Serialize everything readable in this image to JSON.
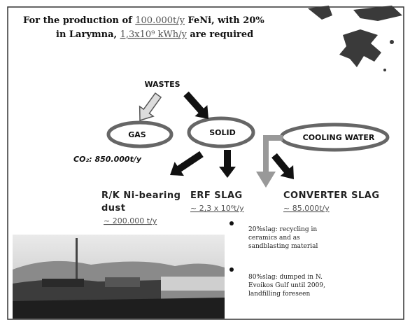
{
  "header": {
    "line1": [
      "For the production of ",
      "100.000t/y",
      " FeNi, with 20%"
    ],
    "line2": [
      "in Larymna, ",
      "1,3x10⁹ kWh/y",
      " are required"
    ]
  },
  "nodes": [
    {
      "label": "WASTES"
    },
    {
      "label": "GAS"
    },
    {
      "label": "SOLID"
    },
    {
      "label": "COOLING WATER"
    }
  ],
  "gas_note": "CO₂: 850.000t/y",
  "outputs": [
    {
      "label": [
        "R/K Ni-bearing",
        "dust"
      ],
      "amount": "~ 200.000 t/y"
    },
    {
      "label": [
        "ERF SLAG"
      ],
      "amount": "~ 2,3 x 10⁶t/y"
    },
    {
      "label": [
        "CONVERTER SLAG"
      ],
      "amount": "~ 85.000t/y"
    }
  ],
  "bullets": [
    [
      "20%slag: recycling in",
      "ceramics and as",
      "sandblasting material"
    ],
    [
      "80%slag: dumped in N.",
      "Evoikos Gulf until 2009,",
      "landfilling foreseen"
    ]
  ]
}
